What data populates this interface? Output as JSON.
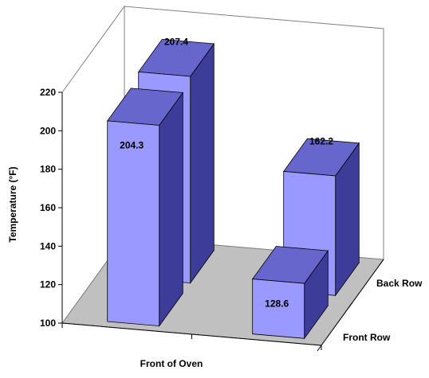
{
  "chart_data": {
    "type": "bar",
    "style": "3d",
    "title": "",
    "xlabel": "Front of Oven",
    "ylabel": "Temperature (°F)",
    "depth_categories": [
      "Front Row",
      "Back Row"
    ],
    "ylim": [
      100,
      220
    ],
    "yticks": [
      "100",
      "120",
      "140",
      "160",
      "180",
      "200",
      "220"
    ],
    "grid": false,
    "legend": "none",
    "series": [
      {
        "name": "Front Row",
        "values": [
          204.3,
          128.6
        ],
        "value_labels": [
          "204.3",
          "128.6"
        ]
      },
      {
        "name": "Back Row",
        "values": [
          207.4,
          162.2
        ],
        "value_labels": [
          "207.4",
          "162.2"
        ]
      }
    ]
  },
  "colors": {
    "bar_front": "#9999FF",
    "bar_top": "#6666CC",
    "bar_side": "#3D3D99",
    "floor": "#C0C0C0",
    "walls": "#FFFFFF",
    "lines": "#808080"
  }
}
